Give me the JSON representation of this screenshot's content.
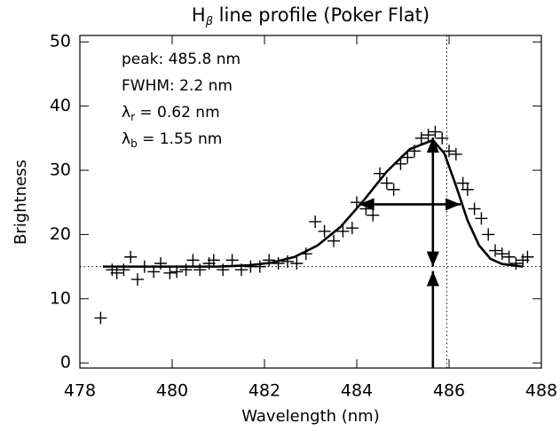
{
  "chart_data": {
    "type": "scatter",
    "title": {
      "main": "H",
      "sub": "β",
      "rest": " line profile (Poker Flat)"
    },
    "xlabel": "Wavelength (nm)",
    "ylabel": "Brightness",
    "xlim": [
      478,
      488
    ],
    "ylim": [
      -0.8,
      51
    ],
    "xticks": [
      478,
      480,
      482,
      484,
      486,
      488
    ],
    "yticks": [
      0,
      10,
      20,
      30,
      40,
      50
    ],
    "color": "#000000",
    "annotations": [
      {
        "main": "peak: 485.8 nm"
      },
      {
        "main": "FWHM: 2.2 nm"
      },
      {
        "main": "λ",
        "sub": "r",
        "rest": " = 0.62 nm"
      },
      {
        "main": "λ",
        "sub": "b",
        "rest": " = 1.55 nm"
      }
    ],
    "points": {
      "x": [
        478.45,
        478.7,
        478.8,
        478.95,
        479.1,
        479.25,
        479.4,
        479.6,
        479.75,
        479.95,
        480.1,
        480.3,
        480.45,
        480.6,
        480.8,
        480.9,
        481.1,
        481.3,
        481.5,
        481.7,
        481.9,
        482.1,
        482.3,
        482.5,
        482.7,
        482.9,
        483.1,
        483.3,
        483.5,
        483.7,
        483.9,
        484.0,
        484.2,
        484.35,
        484.5,
        484.65,
        484.8,
        484.95,
        485.1,
        485.25,
        485.4,
        485.55,
        485.7,
        485.85,
        486.0,
        486.15,
        486.3,
        486.4,
        486.55,
        486.7,
        486.85,
        487.0,
        487.15,
        487.3,
        487.45,
        487.6,
        487.7
      ],
      "values": [
        7,
        14.5,
        14.0,
        14.5,
        16.5,
        13.0,
        15.0,
        14.2,
        15.5,
        14.0,
        14.2,
        14.5,
        16.0,
        14.5,
        15.5,
        16.0,
        14.5,
        16.0,
        14.5,
        15.0,
        15.0,
        16.0,
        15.5,
        15.8,
        15.5,
        17.0,
        22.0,
        20.5,
        19.0,
        20.5,
        21.0,
        25.0,
        24.0,
        23.0,
        29.5,
        28.0,
        27.0,
        31.0,
        32.0,
        33.0,
        35.0,
        35.5,
        36.0,
        35.0,
        33.0,
        32.5,
        28.0,
        27.0,
        24.0,
        22.5,
        20.0,
        17.5,
        17.0,
        16.5,
        15.5,
        16.0,
        16.5
      ]
    },
    "fit": {
      "x": [
        478.5,
        479.0,
        480.0,
        481.0,
        481.65,
        482.15,
        482.65,
        483.15,
        483.65,
        484.15,
        484.65,
        485.15,
        485.65,
        485.9,
        486.15,
        486.4,
        486.65,
        486.9,
        487.15,
        487.6
      ],
      "values": [
        15.0,
        15.0,
        15.0,
        15.0,
        15.2,
        15.6,
        16.5,
        18.3,
        21.2,
        25.3,
        29.8,
        33.3,
        34.7,
        32.6,
        27.6,
        22.2,
        18.3,
        16.2,
        15.4,
        15.0
      ]
    },
    "reference_lines": {
      "hline": 15,
      "vline": 485.95
    },
    "arrows": [
      {
        "x": [
          485.65,
          485.65
        ],
        "y": [
          15,
          35.1
        ],
        "heads": "both"
      },
      {
        "x": [
          485.65,
          485.65
        ],
        "y": [
          -0.8,
          14.3
        ],
        "heads": "end"
      },
      {
        "x": [
          484.05,
          486.25
        ],
        "y": [
          24.7,
          24.7
        ],
        "heads": "both"
      }
    ]
  }
}
